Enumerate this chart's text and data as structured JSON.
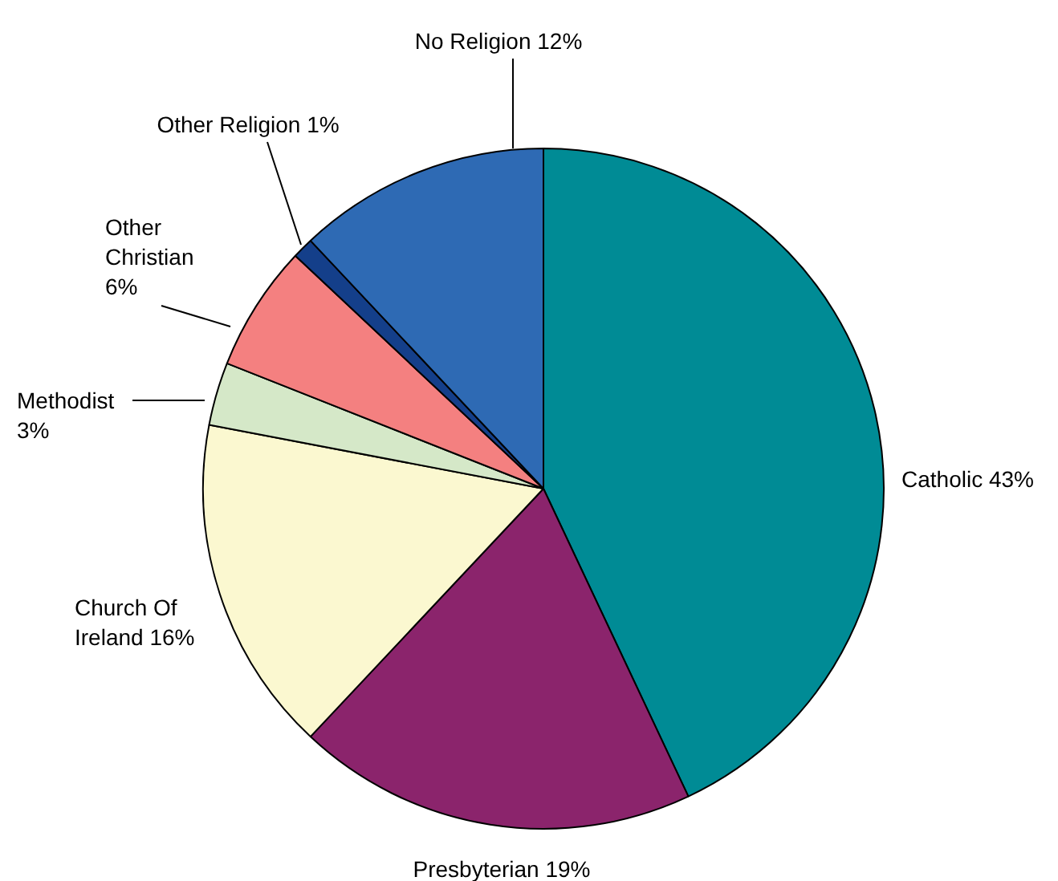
{
  "chart_data": {
    "type": "pie",
    "categories": [
      "Catholic",
      "Presbyterian",
      "Church Of Ireland",
      "Methodist",
      "Other Christian",
      "Other Religion",
      "No Religion"
    ],
    "values": [
      43,
      19,
      16,
      3,
      6,
      1,
      12
    ],
    "value_labels": [
      "43%",
      "19%",
      "16%",
      "3%",
      "6%",
      "1%",
      "12%"
    ],
    "colors": [
      "#008b95",
      "#8b246c",
      "#fbf8d0",
      "#d5e8c8",
      "#f48080",
      "#143f8a",
      "#2e6ab4"
    ]
  }
}
